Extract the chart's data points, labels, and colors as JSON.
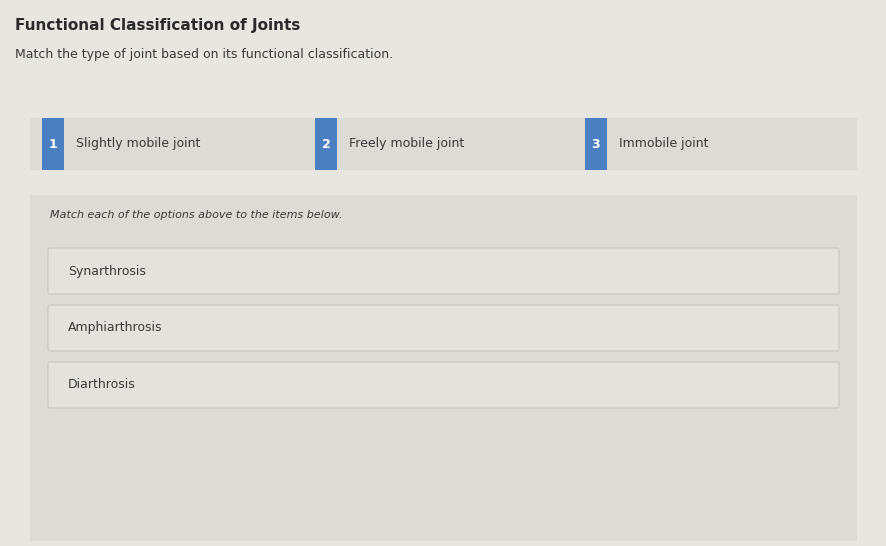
{
  "title": "Functional Classification of Joints",
  "subtitle": "Match the type of joint based on its functional classification.",
  "bg_color": "#e8e6e0",
  "options_bar_bg": "#dddbd5",
  "bottom_section_bg": "#dddbd5",
  "item_box_bg": "#e4e2dc",
  "item_box_edge": "#c8c6c0",
  "badge_color": "#4a7fc1",
  "badge_text_color": "#ffffff",
  "title_color": "#2a2a2a",
  "text_color": "#3a3a3a",
  "options": [
    {
      "number": "1",
      "label": "Slightly mobile joint"
    },
    {
      "number": "2",
      "label": "Freely mobile joint"
    },
    {
      "number": "3",
      "label": "Immobile joint"
    }
  ],
  "items": [
    "Synarthrosis",
    "Amphiarthrosis",
    "Diarthrosis"
  ],
  "match_instruction": "Match each of the options above to the items below.",
  "title_fontsize": 11,
  "subtitle_fontsize": 9,
  "option_label_fontsize": 9,
  "badge_fontsize": 9,
  "item_fontsize": 9,
  "instruction_fontsize": 8
}
